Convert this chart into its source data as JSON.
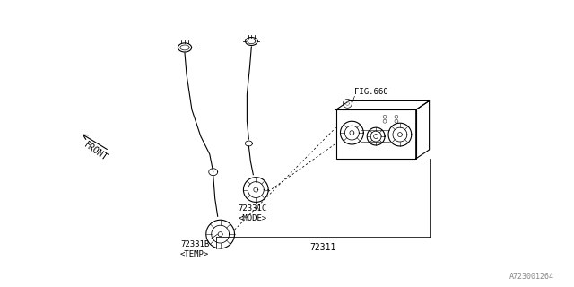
{
  "bg_color": "#ffffff",
  "line_color": "#000000",
  "fig_width": 6.4,
  "fig_height": 3.2,
  "part_number_main": "72311",
  "part_72331B": "72331B\n<TEMP>",
  "part_72331C": "72331C\n<MODE>",
  "part_fig660": "FIG.660",
  "part_front": "FRONT",
  "watermark": "A723001264",
  "title_fontsize": 7,
  "label_fontsize": 6.5
}
